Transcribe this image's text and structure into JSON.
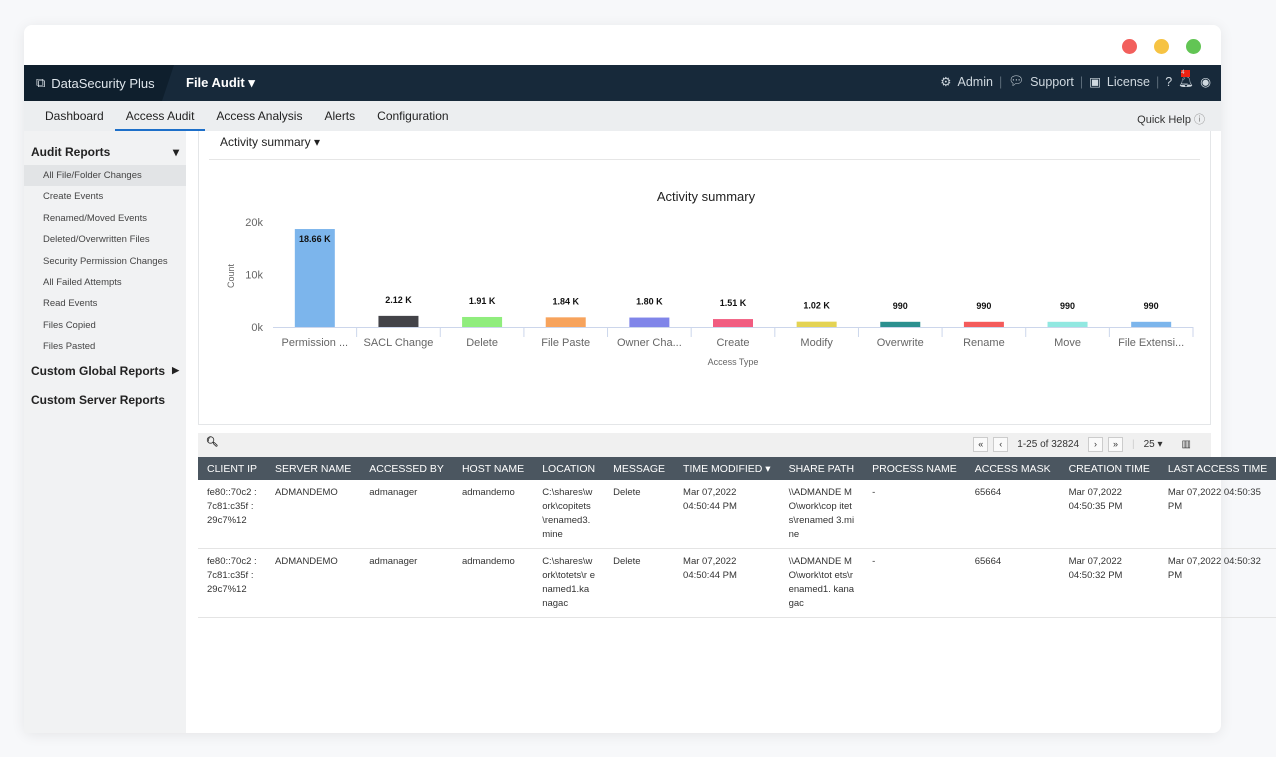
{
  "window": {
    "lights": [
      "#f25f5c",
      "#f6c343",
      "#62c554"
    ]
  },
  "header": {
    "brand": "DataSecurity Plus",
    "module": "File Audit",
    "admin": "Admin",
    "support": "Support",
    "license": "License",
    "help": "?",
    "notif_count": "4"
  },
  "nav": {
    "tabs": [
      "Dashboard",
      "Access Audit",
      "Access Analysis",
      "Alerts",
      "Configuration"
    ],
    "active": 1,
    "quick_help": "Quick Help"
  },
  "sidebar": {
    "audit_reports": "Audit Reports",
    "items": [
      "All File/Folder Changes",
      "Create Events",
      "Renamed/Moved Events",
      "Deleted/Overwritten Files",
      "Security Permission Changes",
      "All Failed Attempts",
      "Read Events",
      "Files Copied",
      "Files Pasted"
    ],
    "custom_global": "Custom Global Reports",
    "custom_server": "Custom Server Reports"
  },
  "report": {
    "selector": "Activity summary"
  },
  "chart_data": {
    "type": "bar",
    "title": "Activity summary",
    "xlabel": "Access Type",
    "ylabel": "Count",
    "ylim": [
      0,
      20000
    ],
    "yticks": [
      "0k",
      "10k",
      "20k"
    ],
    "categories": [
      "Permission ...",
      "SACL Change",
      "Delete",
      "File Paste",
      "Owner Cha...",
      "Create",
      "Modify",
      "Overwrite",
      "Rename",
      "Move",
      "File Extensi..."
    ],
    "values": [
      18660,
      2120,
      1910,
      1840,
      1800,
      1510,
      1020,
      990,
      990,
      990,
      990
    ],
    "labels": [
      "18.66 K",
      "2.12 K",
      "1.91 K",
      "1.84 K",
      "1.80 K",
      "1.51 K",
      "1.02 K",
      "990",
      "990",
      "990",
      "990"
    ],
    "colors": [
      "#7cb5ec",
      "#434348",
      "#90ed7d",
      "#f7a35c",
      "#8085e9",
      "#f15c80",
      "#e4d354",
      "#2b908f",
      "#f45b5b",
      "#91e8e1",
      "#7cb5ec"
    ]
  },
  "pagination": {
    "range": "1-25 of 32824",
    "per_page": "25"
  },
  "table": {
    "columns": [
      "CLIENT IP",
      "SERVER NAME",
      "ACCESSED BY",
      "HOST NAME",
      "LOCATION",
      "MESSAGE",
      "TIME MODIFIED",
      "SHARE PATH",
      "PROCESS NAME",
      "ACCESS MASK",
      "CREATION TIME",
      "LAST ACCESS TIME"
    ],
    "rows": [
      [
        "fe80::70c2 :7c81:c35f :29c7%12",
        "ADMANDEMO",
        "admanager",
        "admandemo",
        "C:\\shares\\w ork\\copitets \\renamed3. mine",
        "Delete",
        "Mar 07,2022 04:50:44 PM",
        "\\\\ADMANDE MO\\work\\cop itets\\renamed 3.mine",
        "-",
        "65664",
        "Mar 07,2022 04:50:35 PM",
        "Mar 07,2022 04:50:35 PM"
      ],
      [
        "fe80::70c2 :7c81:c35f :29c7%12",
        "ADMANDEMO",
        "admanager",
        "admandemo",
        "C:\\shares\\w ork\\totets\\r enamed1.ka nagac",
        "Delete",
        "Mar 07,2022 04:50:44 PM",
        "\\\\ADMANDE MO\\work\\tot ets\\renamed1. kanagac",
        "-",
        "65664",
        "Mar 07,2022 04:50:32 PM",
        "Mar 07,2022 04:50:32 PM"
      ]
    ]
  }
}
